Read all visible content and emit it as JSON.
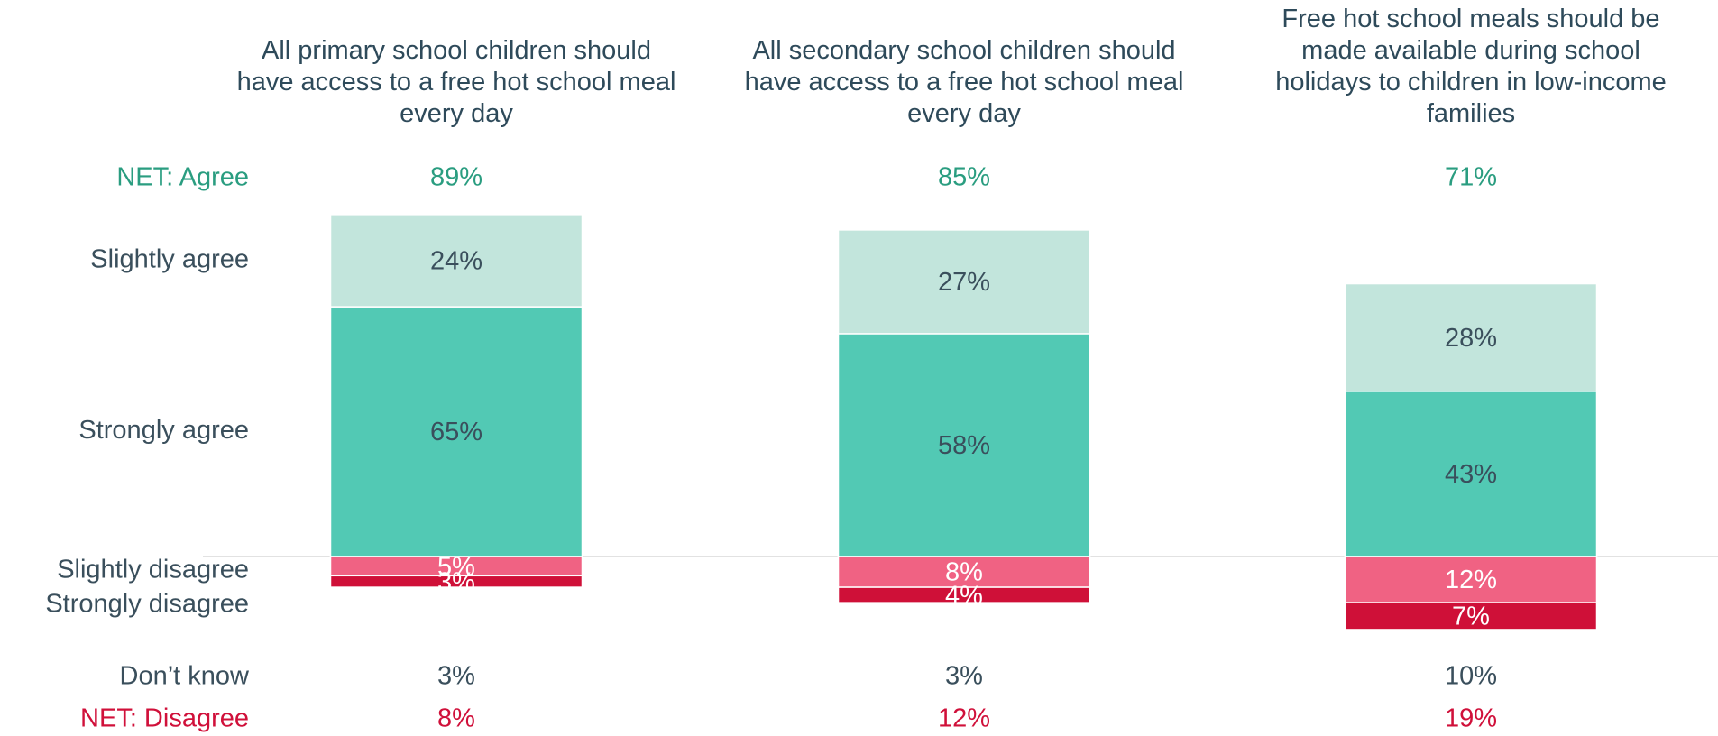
{
  "chart_data": {
    "type": "diverging_stacked_bar",
    "categories": [
      "All primary school children should have access to a free hot school meal every day",
      "All secondary school children should have access to a free hot school meal every day",
      "Free hot school meals should be made available during school holidays to children in low-income families"
    ],
    "series": [
      {
        "name": "Strongly agree",
        "color": "#52c9b4",
        "label_color": "#3a4f5c",
        "side": "above",
        "values": [
          65,
          58,
          43
        ],
        "value_labels": [
          "65%",
          "58%",
          "43%"
        ]
      },
      {
        "name": "Slightly agree",
        "color": "#c2e5dc",
        "label_color": "#3a4f5c",
        "side": "above",
        "values": [
          24,
          27,
          28
        ],
        "value_labels": [
          "24%",
          "27%",
          "28%"
        ]
      },
      {
        "name": "Slightly disagree",
        "color": "#f06283",
        "label_color": "#ffffff",
        "side": "below",
        "values": [
          5,
          8,
          12
        ],
        "value_labels": [
          "5%",
          "8%",
          "12%"
        ]
      },
      {
        "name": "Strongly disagree",
        "color": "#cf1038",
        "label_color": "#ffffff",
        "side": "below",
        "values": [
          3,
          4,
          7
        ],
        "value_labels": [
          "3%",
          "4%",
          "7%"
        ]
      }
    ],
    "rows": [
      {
        "name": "NET: Agree",
        "color": "#2a9d80",
        "values": [
          89,
          85,
          71
        ],
        "value_labels": [
          "89%",
          "85%",
          "71%"
        ]
      },
      {
        "name": "Don’t know",
        "color": "#3a4f5c",
        "values": [
          3,
          3,
          10
        ],
        "value_labels": [
          "3%",
          "3%",
          "10%"
        ]
      },
      {
        "name": "NET: Disagree",
        "color": "#d0103a",
        "values": [
          8,
          12,
          19
        ],
        "value_labels": [
          "8%",
          "12%",
          "19%"
        ]
      }
    ]
  }
}
